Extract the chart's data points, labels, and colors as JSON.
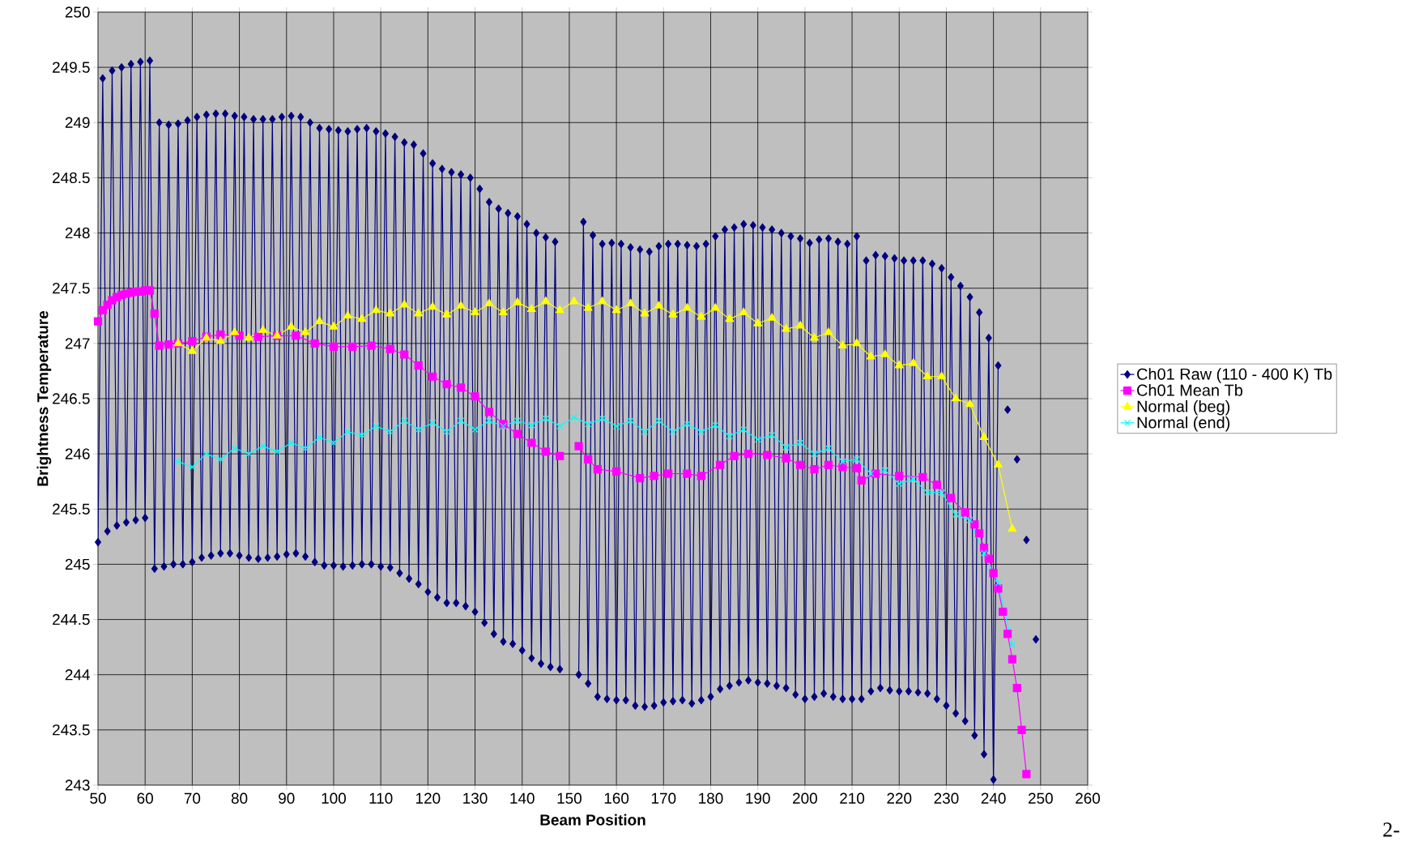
{
  "chart_data": {
    "type": "line",
    "xlabel": "Beam Position",
    "ylabel": "Brightness Temperature",
    "xlim": [
      50,
      260
    ],
    "xticks": [
      50,
      60,
      70,
      80,
      90,
      100,
      110,
      120,
      130,
      140,
      150,
      160,
      170,
      180,
      190,
      200,
      210,
      220,
      230,
      240,
      250,
      260
    ],
    "ylim": [
      243,
      250
    ],
    "yticks": [
      243,
      243.5,
      244,
      244.5,
      245,
      245.5,
      246,
      246.5,
      247,
      247.5,
      248,
      248.5,
      249,
      249.5,
      250
    ],
    "grid": true,
    "legend": "right",
    "line_style": "solid",
    "annotations": [
      "2-"
    ],
    "series": [
      {
        "name": "Ch01 Raw (110 - 400 K) Tb",
        "color": "#000080",
        "marker": "diamond",
        "x": [
          50,
          51,
          52,
          53,
          54,
          55,
          56,
          57,
          58,
          59,
          60,
          61,
          62,
          63,
          64,
          65,
          66,
          67,
          68,
          69,
          70,
          71,
          72,
          73,
          74,
          75,
          76,
          77,
          78,
          79,
          80,
          81,
          82,
          83,
          84,
          85,
          86,
          87,
          88,
          89,
          90,
          91,
          92,
          93,
          94,
          95,
          96,
          97,
          98,
          99,
          100,
          101,
          102,
          103,
          104,
          105,
          106,
          107,
          108,
          109,
          110,
          111,
          112,
          113,
          114,
          115,
          116,
          117,
          118,
          119,
          120,
          121,
          122,
          123,
          124,
          125,
          126,
          127,
          128,
          129,
          130,
          131,
          132,
          133,
          134,
          135,
          136,
          137,
          138,
          139,
          140,
          141,
          142,
          143,
          144,
          145,
          146,
          147,
          148,
          149,
          150,
          151,
          152,
          153,
          154,
          155,
          156,
          157,
          158,
          159,
          160,
          161,
          162,
          163,
          164,
          165,
          166,
          167,
          168,
          169,
          170,
          171,
          172,
          173,
          174,
          175,
          176,
          177,
          178,
          179,
          180,
          181,
          182,
          183,
          184,
          185,
          186,
          187,
          188,
          189,
          190,
          191,
          192,
          193,
          194,
          195,
          196,
          197,
          198,
          199,
          200,
          201,
          202,
          203,
          204,
          205,
          206,
          207,
          208,
          209,
          210,
          211,
          212,
          213,
          214,
          215,
          216,
          217,
          218,
          219,
          220,
          221,
          222,
          223,
          224,
          225,
          226,
          227,
          228,
          229,
          230,
          231,
          232,
          233,
          234,
          235,
          236,
          237,
          238,
          239,
          240,
          241,
          242,
          243,
          244,
          245,
          246,
          247,
          248,
          249
        ],
        "values": [
          245.2,
          249.4,
          245.3,
          249.47,
          245.35,
          249.5,
          245.38,
          249.53,
          245.4,
          249.55,
          245.42,
          249.56,
          244.96,
          249.0,
          244.98,
          248.98,
          245.0,
          248.99,
          245.0,
          249.02,
          245.02,
          249.05,
          245.06,
          249.07,
          245.08,
          249.08,
          245.1,
          249.08,
          245.1,
          249.06,
          245.08,
          249.05,
          245.06,
          249.03,
          245.05,
          249.03,
          245.06,
          249.03,
          245.07,
          249.05,
          245.09,
          249.06,
          245.1,
          249.05,
          245.07,
          249.0,
          245.02,
          248.95,
          244.99,
          248.94,
          244.99,
          248.93,
          244.98,
          248.92,
          244.99,
          248.94,
          245.0,
          248.95,
          245.0,
          248.92,
          244.98,
          248.9,
          244.97,
          248.87,
          244.92,
          248.82,
          244.87,
          248.8,
          244.82,
          248.72,
          244.75,
          248.63,
          244.7,
          248.58,
          244.65,
          248.55,
          244.65,
          248.53,
          244.62,
          248.5,
          244.57,
          248.4,
          244.47,
          248.28,
          244.37,
          248.22,
          244.3,
          248.18,
          244.28,
          248.15,
          244.22,
          248.08,
          244.15,
          248.0,
          244.1,
          247.96,
          244.07,
          247.92,
          244.05,
          null,
          null,
          null,
          244.0,
          248.1,
          243.92,
          247.98,
          243.8,
          247.9,
          243.78,
          247.91,
          243.77,
          247.9,
          243.77,
          247.87,
          243.72,
          247.85,
          243.71,
          247.83,
          243.72,
          247.88,
          243.75,
          247.9,
          243.76,
          247.9,
          243.77,
          247.89,
          243.74,
          247.88,
          243.77,
          247.9,
          243.8,
          247.97,
          243.87,
          248.03,
          243.9,
          248.05,
          243.93,
          248.08,
          243.95,
          248.07,
          243.93,
          248.05,
          243.92,
          248.03,
          243.9,
          248.0,
          243.88,
          247.97,
          243.82,
          247.95,
          243.78,
          247.91,
          243.8,
          247.94,
          243.83,
          247.95,
          243.8,
          247.92,
          243.78,
          247.9,
          243.78,
          247.97,
          243.78,
          247.75,
          243.85,
          247.8,
          243.88,
          247.79,
          243.86,
          247.77,
          243.85,
          247.75,
          243.85,
          247.75,
          243.84,
          247.75,
          243.83,
          247.72,
          243.78,
          247.68,
          243.72,
          247.6,
          243.65,
          247.52,
          243.58,
          247.42,
          243.45,
          247.28,
          243.28,
          247.05,
          243.05,
          246.8,
          null,
          246.4,
          null,
          245.95,
          null,
          245.22,
          null,
          244.32
        ]
      },
      {
        "name": "Ch01 Mean Tb",
        "color": "#ff00ff",
        "marker": "square",
        "x": [
          50,
          51,
          52,
          53,
          54,
          55,
          56,
          57,
          58,
          59,
          60,
          61,
          62,
          63,
          65,
          67,
          70,
          73,
          76,
          80,
          84,
          88,
          92,
          96,
          100,
          104,
          108,
          112,
          115,
          118,
          121,
          124,
          127,
          130,
          133,
          136,
          139,
          142,
          145,
          148,
          149,
          152,
          154,
          156,
          160,
          165,
          168,
          171,
          175,
          178,
          182,
          185,
          188,
          192,
          196,
          199,
          202,
          205,
          208,
          211,
          212,
          215,
          220,
          225,
          228,
          231,
          234,
          236,
          237,
          238,
          239,
          240,
          241,
          242,
          243,
          244,
          245,
          246,
          247
        ],
        "values": [
          247.2,
          247.3,
          247.35,
          247.39,
          247.42,
          247.44,
          247.45,
          247.46,
          247.47,
          247.47,
          247.48,
          247.48,
          247.27,
          246.98,
          246.99,
          247.0,
          247.02,
          247.06,
          247.08,
          247.07,
          247.06,
          247.07,
          247.07,
          247.0,
          246.97,
          246.97,
          246.98,
          246.95,
          246.9,
          246.8,
          246.7,
          246.63,
          246.6,
          246.52,
          246.38,
          246.27,
          246.18,
          246.1,
          246.02,
          245.98,
          null,
          246.07,
          245.95,
          245.86,
          245.84,
          245.78,
          245.8,
          245.82,
          245.82,
          245.8,
          245.9,
          245.98,
          246.0,
          245.99,
          245.96,
          245.9,
          245.86,
          245.9,
          245.88,
          245.87,
          245.76,
          245.82,
          245.8,
          245.79,
          245.72,
          245.6,
          245.47,
          245.36,
          245.28,
          245.15,
          245.05,
          244.92,
          244.78,
          244.57,
          244.37,
          244.14,
          243.88,
          243.5,
          243.1
        ]
      },
      {
        "name": "Normal (beg)",
        "color": "#ffff00",
        "marker": "triangle",
        "x": [
          67,
          70,
          73,
          76,
          79,
          82,
          85,
          88,
          91,
          94,
          97,
          100,
          103,
          106,
          109,
          112,
          115,
          118,
          121,
          124,
          127,
          130,
          133,
          136,
          139,
          142,
          145,
          148,
          151,
          154,
          157,
          160,
          163,
          166,
          169,
          172,
          175,
          178,
          181,
          184,
          187,
          190,
          193,
          196,
          199,
          202,
          205,
          208,
          211,
          214,
          217,
          220,
          223,
          226,
          229,
          232,
          235,
          238,
          241,
          244
        ],
        "values": [
          247.0,
          246.93,
          247.05,
          247.02,
          247.1,
          247.05,
          247.12,
          247.07,
          247.15,
          247.1,
          247.2,
          247.15,
          247.25,
          247.22,
          247.3,
          247.27,
          247.35,
          247.27,
          247.33,
          247.26,
          247.34,
          247.28,
          247.36,
          247.28,
          247.37,
          247.31,
          247.38,
          247.3,
          247.38,
          247.32,
          247.38,
          247.3,
          247.36,
          247.27,
          247.34,
          247.26,
          247.32,
          247.24,
          247.32,
          247.22,
          247.28,
          247.18,
          247.23,
          247.13,
          247.16,
          247.05,
          247.1,
          246.98,
          247.0,
          246.88,
          246.9,
          246.8,
          246.82,
          246.7,
          246.7,
          246.5,
          246.45,
          246.15,
          245.9,
          245.32
        ]
      },
      {
        "name": "Normal (end)",
        "color": "#00ffff",
        "marker": "cross",
        "x": [
          67,
          70,
          73,
          76,
          79,
          82,
          85,
          88,
          91,
          94,
          97,
          100,
          103,
          106,
          109,
          112,
          115,
          118,
          121,
          124,
          127,
          130,
          133,
          136,
          139,
          142,
          145,
          148,
          151,
          154,
          157,
          160,
          163,
          166,
          169,
          172,
          175,
          178,
          181,
          184,
          187,
          190,
          193,
          196,
          199,
          202,
          205,
          208,
          211,
          214,
          217,
          220,
          223,
          226,
          229,
          232,
          235,
          238,
          241,
          244
        ],
        "values": [
          245.93,
          245.88,
          246.0,
          245.95,
          246.05,
          246.0,
          246.07,
          246.02,
          246.1,
          246.05,
          246.15,
          246.1,
          246.2,
          246.17,
          246.25,
          246.2,
          246.3,
          246.22,
          246.28,
          246.2,
          246.3,
          246.22,
          246.3,
          246.25,
          246.3,
          246.26,
          246.32,
          246.25,
          246.33,
          246.27,
          246.32,
          246.25,
          246.3,
          246.2,
          246.3,
          246.2,
          246.27,
          246.2,
          246.26,
          246.16,
          246.22,
          246.13,
          246.17,
          246.06,
          246.1,
          246.0,
          246.05,
          245.93,
          245.95,
          245.82,
          245.85,
          245.73,
          245.77,
          245.65,
          245.65,
          245.45,
          245.4,
          245.1,
          244.83,
          244.27
        ]
      }
    ]
  }
}
